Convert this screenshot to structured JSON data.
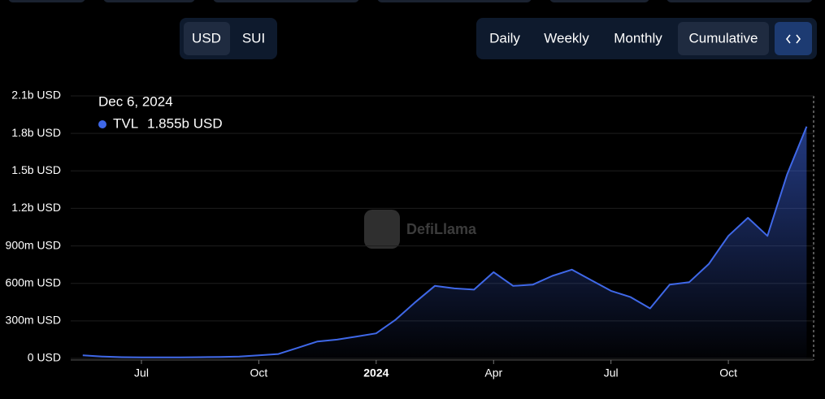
{
  "ui": {
    "currency": [
      "USD",
      "SUI"
    ],
    "period": [
      "Daily",
      "Weekly",
      "Monthly",
      "Cumulative"
    ],
    "watermark": "DefiLlama"
  },
  "tooltip": {
    "date": "Dec 6, 2024",
    "value": "1.855b USD"
  },
  "chart_data": {
    "type": "line",
    "categories": [
      null,
      null,
      null,
      "Jul",
      null,
      null,
      null,
      null,
      null,
      "Oct",
      null,
      null,
      null,
      null,
      null,
      "2024",
      null,
      null,
      null,
      null,
      null,
      "Apr",
      null,
      null,
      null,
      null,
      null,
      "Jul",
      null,
      null,
      null,
      null,
      null,
      "Oct",
      null,
      null,
      null,
      null
    ],
    "series": [
      {
        "name": "TVL",
        "color": "#3f68e8",
        "values": [
          25000000,
          15000000,
          10000000,
          8000000,
          8000000,
          8000000,
          10000000,
          12000000,
          15000000,
          25000000,
          35000000,
          85000000,
          135000000,
          150000000,
          175000000,
          200000000,
          310000000,
          450000000,
          580000000,
          560000000,
          550000000,
          690000000,
          580000000,
          590000000,
          660000000,
          710000000,
          625000000,
          540000000,
          490000000,
          400000000,
          590000000,
          610000000,
          755000000,
          980000000,
          1125000000,
          980000000,
          1470000000,
          1855000000
        ]
      }
    ],
    "ylim": [
      0,
      2100000000
    ],
    "yticks": [
      {
        "value": 0,
        "label": "0 USD"
      },
      {
        "value": 300000000,
        "label": "300m USD"
      },
      {
        "value": 600000000,
        "label": "600m USD"
      },
      {
        "value": 900000000,
        "label": "900m USD"
      },
      {
        "value": 1200000000,
        "label": "1.2b USD"
      },
      {
        "value": 1500000000,
        "label": "1.5b USD"
      },
      {
        "value": 1800000000,
        "label": "1.8b USD"
      },
      {
        "value": 2100000000,
        "label": "2.1b USD"
      }
    ],
    "grid": true
  }
}
